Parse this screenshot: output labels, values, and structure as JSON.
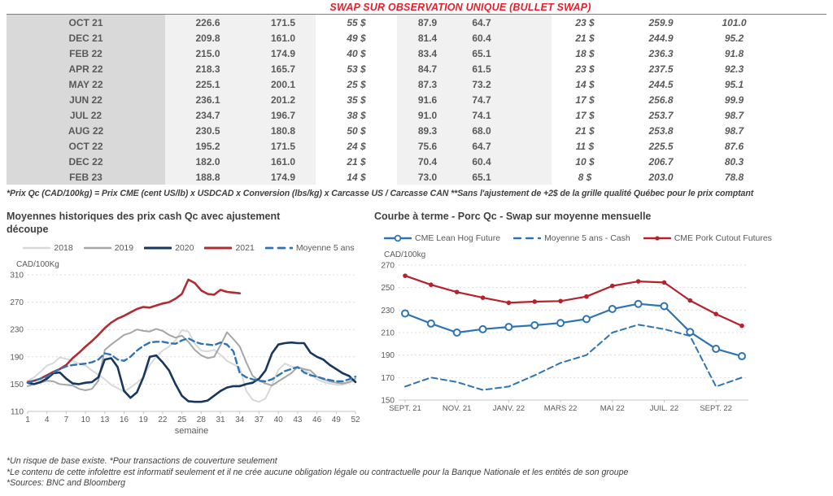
{
  "header": {
    "title": "SWAP SUR OBSERVATION UNIQUE (BULLET SWAP)"
  },
  "colors": {
    "title_red": "#e4202c",
    "positive_green": "#00a550",
    "forward_blue": "#4472c4",
    "table_text_gray": "#595959",
    "series_2018": "#d8d8d8",
    "series_2019": "#a6a6a6",
    "series_2020": "#17375e",
    "series_2021": "#b02c33",
    "series_blue_line": "#2e74b5",
    "series_red_line": "#b5222b"
  },
  "table": {
    "rows": [
      [
        "OCT 21",
        "226.6",
        "171.5",
        "55 $",
        "87.9",
        "64.7",
        "23 $",
        "259.9",
        "101.0"
      ],
      [
        "DEC 21",
        "209.8",
        "161.0",
        "49 $",
        "81.4",
        "60.4",
        "21 $",
        "244.9",
        "95.2"
      ],
      [
        "FEB 22",
        "215.0",
        "174.9",
        "40 $",
        "83.4",
        "65.1",
        "18 $",
        "236.3",
        "91.8"
      ],
      [
        "APR 22",
        "218.3",
        "165.7",
        "53 $",
        "84.7",
        "61.5",
        "23 $",
        "237.5",
        "92.3"
      ],
      [
        "MAY 22",
        "225.1",
        "200.1",
        "25 $",
        "87.3",
        "73.2",
        "14 $",
        "244.5",
        "95.1"
      ],
      [
        "JUN 22",
        "236.1",
        "201.2",
        "35 $",
        "91.6",
        "74.7",
        "17 $",
        "256.8",
        "99.9"
      ],
      [
        "JUL 22",
        "234.7",
        "196.7",
        "38 $",
        "91.0",
        "74.1",
        "17 $",
        "253.7",
        "98.7"
      ],
      [
        "AUG 22",
        "230.5",
        "180.8",
        "50 $",
        "89.3",
        "68.0",
        "21 $",
        "253.8",
        "98.7"
      ],
      [
        "OCT 22",
        "195.2",
        "171.5",
        "24 $",
        "75.6",
        "64.7",
        "11 $",
        "225.5",
        "87.6"
      ],
      [
        "DEC 22",
        "182.0",
        "161.0",
        "21 $",
        "70.4",
        "60.4",
        "10 $",
        "206.7",
        "80.3"
      ],
      [
        "FEB 23",
        "188.8",
        "174.9",
        "14 $",
        "73.0",
        "65.1",
        "8 $",
        "203.0",
        "78.8"
      ]
    ],
    "footnote": "*Prix Qc (CAD/100kg) = Prix CME (cent US/lb) x USDCAD x Conversion (lbs/kg) x Carcasse US / Carcasse CAN **Sans l'ajustement de +2$ de la grille qualité Québec pour le prix comptant"
  },
  "chart_data": [
    {
      "name": "historical-cash-prices",
      "type": "line",
      "title": "Moyennes historiques des prix cash Qc avec ajustement découpe",
      "ylabel": "CAD/100Kg",
      "xlabel": "semaine",
      "ylim": [
        110,
        310
      ],
      "yticks": [
        110,
        150,
        190,
        230,
        270,
        310
      ],
      "xlim": [
        1,
        52
      ],
      "xticks": [
        1,
        4,
        7,
        10,
        13,
        16,
        19,
        22,
        25,
        28,
        31,
        34,
        37,
        40,
        43,
        46,
        49,
        52
      ],
      "grid": "horizontal-dotted",
      "legend_position": "top",
      "series": [
        {
          "name": "2018",
          "color": "#d8d8d8",
          "dash": false,
          "width": 2,
          "marker": "none",
          "values": [
            155,
            160,
            168,
            177,
            181,
            189,
            187,
            184,
            180,
            177,
            170,
            164,
            157,
            149,
            144,
            139,
            145,
            152,
            160,
            178,
            190,
            199,
            205,
            214,
            229,
            227,
            209,
            199,
            198,
            200,
            193,
            184,
            179,
            174,
            140,
            127,
            124,
            129,
            149,
            171,
            180,
            176,
            174,
            171,
            165,
            157,
            153,
            151,
            149,
            149,
            152,
            155
          ]
        },
        {
          "name": "2019",
          "color": "#a6a6a6",
          "dash": false,
          "width": 2,
          "marker": "none",
          "values": [
            147,
            150,
            152,
            155,
            154,
            150,
            149,
            148,
            143,
            141,
            143,
            155,
            200,
            208,
            215,
            222,
            225,
            230,
            228,
            227,
            231,
            228,
            222,
            218,
            221,
            212,
            200,
            192,
            188,
            190,
            207,
            226,
            216,
            205,
            182,
            162,
            155,
            151,
            148,
            154,
            160,
            166,
            175,
            172,
            170,
            161,
            157,
            154,
            152,
            151,
            153,
            158
          ]
        },
        {
          "name": "2020",
          "color": "#17375e",
          "dash": false,
          "width": 2.6,
          "marker": "none",
          "values": [
            152,
            150,
            153,
            158,
            166,
            167,
            158,
            151,
            150,
            152,
            153,
            160,
            186,
            188,
            175,
            140,
            130,
            138,
            160,
            190,
            192,
            182,
            170,
            150,
            133,
            125,
            124,
            124,
            126,
            133,
            140,
            145,
            147,
            147,
            150,
            152,
            158,
            170,
            195,
            208,
            210,
            211,
            210,
            210,
            196,
            190,
            186,
            178,
            172,
            166,
            162,
            153
          ]
        },
        {
          "name": "2021",
          "color": "#b02c33",
          "dash": false,
          "width": 2.6,
          "marker": "none",
          "values": [
            153,
            155,
            158,
            163,
            168,
            172,
            178,
            188,
            196,
            205,
            213,
            222,
            232,
            240,
            246,
            250,
            255,
            260,
            263,
            262,
            265,
            268,
            270,
            275,
            282,
            303,
            298,
            287,
            282,
            281,
            288,
            285,
            284,
            283
          ]
        },
        {
          "name": "Moyenne 5 ans",
          "color": "#2e74b5",
          "dash": true,
          "width": 2.4,
          "marker": "none",
          "values": [
            152,
            155,
            158,
            161,
            167,
            172,
            176,
            178,
            179,
            180,
            182,
            186,
            195,
            193,
            186,
            184,
            190,
            199,
            206,
            211,
            212,
            212,
            210,
            209,
            214,
            217,
            212,
            209,
            208,
            207,
            211,
            208,
            198,
            166,
            160,
            157,
            155,
            154,
            157,
            163,
            169,
            172,
            175,
            167,
            163,
            161,
            158,
            156,
            154,
            154,
            157,
            161
          ]
        }
      ]
    },
    {
      "name": "forward-curve",
      "type": "line",
      "title": "Courbe à terme - Porc Qc - Swap sur moyenne mensuelle",
      "ylabel": "CAD/100kg",
      "xlabel": "",
      "ylim": [
        150,
        270
      ],
      "yticks": [
        150,
        170,
        190,
        210,
        230,
        250,
        270
      ],
      "n_points": 14,
      "xtick_positions": [
        0,
        2,
        4,
        6,
        8,
        10,
        12
      ],
      "xtick_labels": [
        "SEPT. 21",
        "NOV. 21",
        "JANV. 22",
        "MARS 22",
        "MAI 22",
        "JUIL. 22",
        "SEPT. 22"
      ],
      "grid": "horizontal-dotted",
      "legend_position": "top",
      "series": [
        {
          "name": "CME Lean Hog Future",
          "color": "#2e74b5",
          "dash": false,
          "width": 2.2,
          "marker": "open-circle",
          "values": [
            227,
            218,
            210,
            213,
            215,
            216.5,
            218.5,
            222,
            231,
            235.5,
            233.5,
            210.5,
            195.5,
            189
          ]
        },
        {
          "name": "Moyenne 5 ans - Cash",
          "color": "#2e74b5",
          "dash": true,
          "width": 2,
          "marker": "none",
          "values": [
            162,
            170,
            166,
            159,
            162,
            172,
            183,
            190,
            210,
            217,
            213,
            207,
            162,
            170
          ]
        },
        {
          "name": "CME Pork Cutout Futures",
          "color": "#b5222b",
          "dash": false,
          "width": 2.2,
          "marker": "filled-circle",
          "values": [
            260.5,
            252.5,
            246,
            241,
            236.5,
            237.5,
            238,
            242,
            251.5,
            255.5,
            254.5,
            238.5,
            226.5,
            216
          ]
        }
      ]
    }
  ],
  "footnotes": [
    "*Un risque de base existe. *Pour transactions de couverture seulement",
    "*Le contenu de cette infolettre est informatif seulement et il ne crée aucune obligation légale ou contractuelle pour la Banque Nationale et les entités de son groupe",
    "*Sources: BNC and Bloomberg"
  ]
}
